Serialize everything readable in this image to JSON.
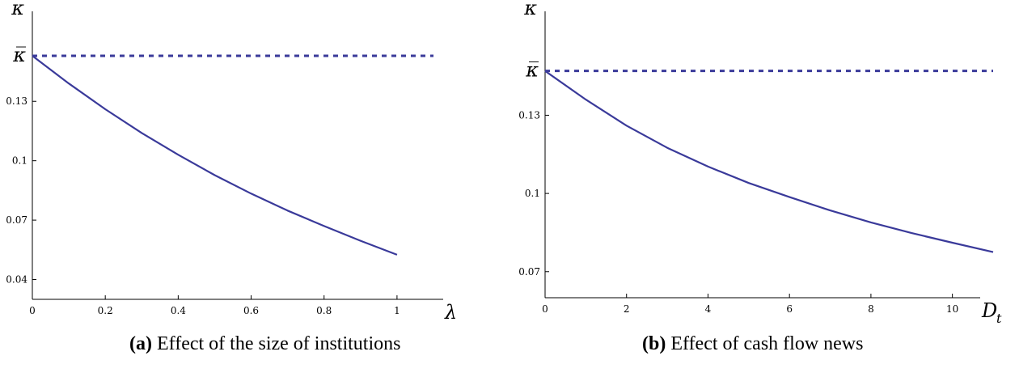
{
  "colors": {
    "curve": "#3a3a9a",
    "axis": "#000000"
  },
  "chart_data": [
    {
      "type": "line",
      "caption_tag": "(a)",
      "caption": "Effect of the size of institutions",
      "xlabel": "λ",
      "xlabel_sub": "",
      "ylabel": "κ",
      "xlim": [
        0,
        1.1
      ],
      "ylim": [
        0.03,
        0.173
      ],
      "xticks": [
        {
          "v": 0,
          "label": "0"
        },
        {
          "v": 0.2,
          "label": "0.2"
        },
        {
          "v": 0.4,
          "label": "0.4"
        },
        {
          "v": 0.6,
          "label": "0.6"
        },
        {
          "v": 0.8,
          "label": "0.8"
        },
        {
          "v": 1,
          "label": "1"
        }
      ],
      "yticks": [
        {
          "v": 0.04,
          "label": "0.04"
        },
        {
          "v": 0.07,
          "label": "0.07"
        },
        {
          "v": 0.1,
          "label": "0.1"
        },
        {
          "v": 0.13,
          "label": "0.13"
        },
        {
          "v": 0.153,
          "label": "κ̅"
        }
      ],
      "series": [
        {
          "style": "solid",
          "x": [
            0,
            0.1,
            0.2,
            0.3,
            0.4,
            0.5,
            0.6,
            0.7,
            0.8,
            0.9,
            1.0
          ],
          "y": [
            0.153,
            0.139,
            0.126,
            0.114,
            0.103,
            0.0927,
            0.0834,
            0.0748,
            0.067,
            0.0596,
            0.0525
          ]
        },
        {
          "style": "dashed",
          "x": [
            0,
            1.1
          ],
          "y": [
            0.153,
            0.153
          ]
        }
      ]
    },
    {
      "type": "line",
      "caption_tag": "(b)",
      "caption": "Effect of cash flow news",
      "xlabel": "D",
      "xlabel_sub": "t",
      "ylabel": "κ",
      "xlim": [
        0,
        11
      ],
      "ylim": [
        0.06,
        0.168
      ],
      "xticks": [
        {
          "v": 0,
          "label": "0"
        },
        {
          "v": 2,
          "label": "2"
        },
        {
          "v": 4,
          "label": "4"
        },
        {
          "v": 6,
          "label": "6"
        },
        {
          "v": 8,
          "label": "8"
        },
        {
          "v": 10,
          "label": "10"
        }
      ],
      "yticks": [
        {
          "v": 0.07,
          "label": "0.07"
        },
        {
          "v": 0.1,
          "label": "0.1"
        },
        {
          "v": 0.13,
          "label": "0.13"
        },
        {
          "v": 0.147,
          "label": "κ̅"
        }
      ],
      "series": [
        {
          "style": "solid",
          "x": [
            0,
            1,
            2,
            3,
            4,
            5,
            6,
            7,
            8,
            9,
            10,
            11
          ],
          "y": [
            0.147,
            0.136,
            0.126,
            0.1175,
            0.1103,
            0.104,
            0.0986,
            0.0935,
            0.0889,
            0.0848,
            0.0811,
            0.0775
          ]
        },
        {
          "style": "dashed",
          "x": [
            0,
            11
          ],
          "y": [
            0.147,
            0.147
          ]
        }
      ]
    }
  ]
}
